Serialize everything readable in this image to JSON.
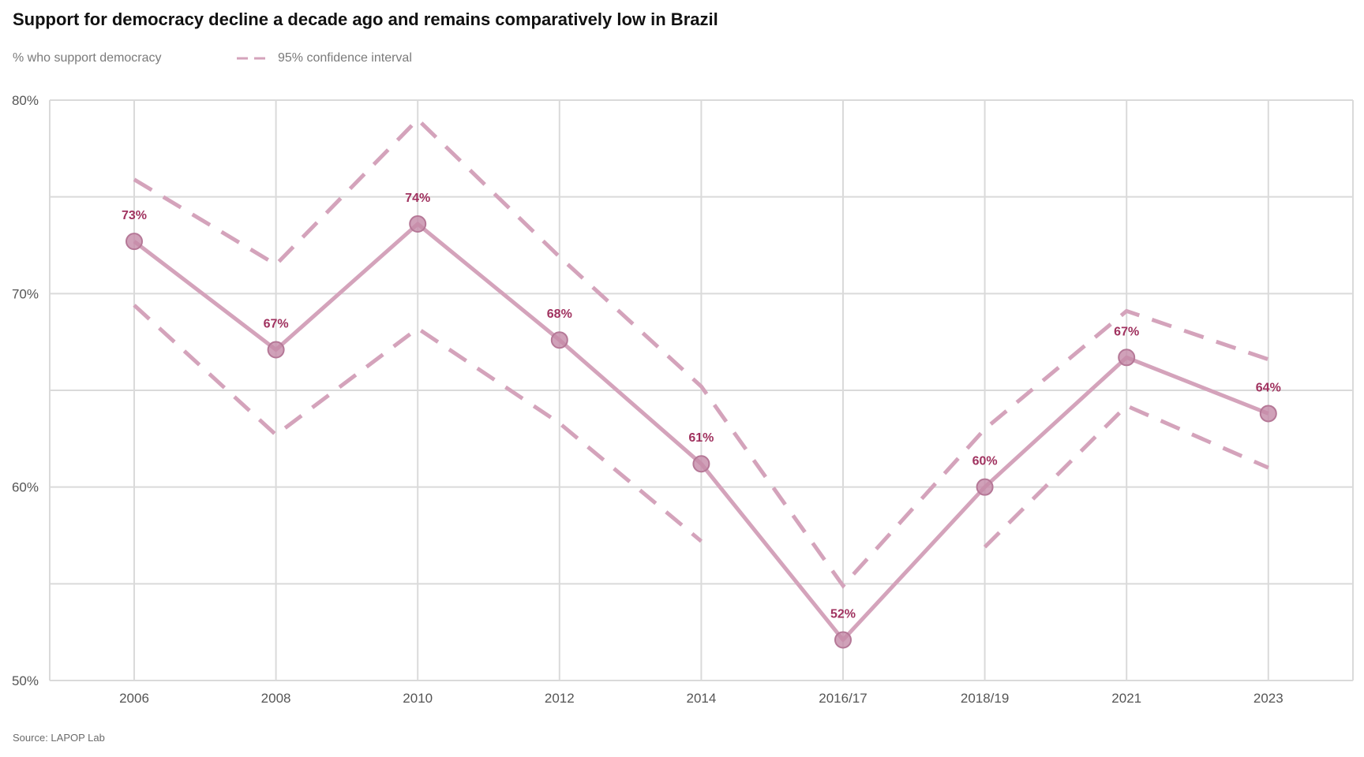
{
  "chart_data": {
    "type": "line",
    "title": "Support for democracy decline a decade ago and remains comparatively low in Brazil",
    "subtitle": "% who support democracy",
    "categories": [
      "2006",
      "2008",
      "2010",
      "2012",
      "2014",
      "2016/17",
      "2018/19",
      "2021",
      "2023"
    ],
    "series": [
      {
        "name": "% who support democracy",
        "values": [
          72.7,
          67.1,
          73.6,
          67.6,
          61.2,
          52.1,
          60.0,
          66.7,
          63.8
        ],
        "labels": [
          "73%",
          "67%",
          "74%",
          "68%",
          "61%",
          "52%",
          "60%",
          "67%",
          "64%"
        ]
      },
      {
        "name": "95% confidence interval",
        "upper": [
          75.9,
          71.5,
          79.0,
          71.9,
          65.2,
          54.9,
          63.0,
          69.1,
          66.6
        ],
        "lower": [
          69.4,
          62.7,
          68.2,
          63.3,
          57.2,
          null,
          56.9,
          64.2,
          61.0
        ]
      }
    ],
    "ylim": [
      50,
      80
    ],
    "yticks": [
      50,
      60,
      70,
      80
    ],
    "ytick_labels": [
      "50%",
      "60%",
      "70%",
      "80%"
    ],
    "grid": true,
    "legend_label": "95% confidence interval",
    "xlabel": "",
    "ylabel": "",
    "colors": {
      "line": "#d4a3bb",
      "marker": "#c48aa8",
      "label": "#a0325f",
      "grid": "#dadada"
    }
  },
  "source": "Source: LAPOP Lab"
}
